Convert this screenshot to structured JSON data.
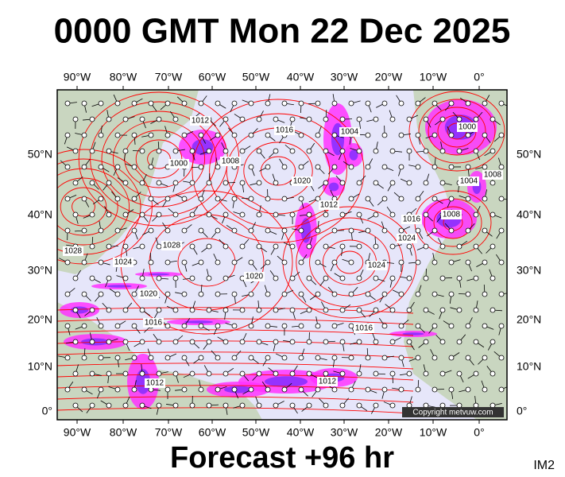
{
  "title": "0000 GMT Mon 22 Dec 2025",
  "subtitle": "Forecast +96 hr",
  "corner_label": "IM2",
  "copyright": "Copyright metvuw.com",
  "lon_labels": [
    "90°W",
    "80°W",
    "70°W",
    "60°W",
    "50°W",
    "40°W",
    "30°W",
    "20°W",
    "10°W",
    "0°"
  ],
  "lat_labels": [
    "50°N",
    "40°N",
    "30°N",
    "20°N",
    "10°N",
    "0°"
  ],
  "isobar_labels": [
    "1012",
    "1016",
    "1000",
    "1008",
    "1004",
    "1020",
    "1012",
    "1016",
    "1024",
    "1024",
    "1020",
    "1028",
    "1024",
    "1028",
    "1020",
    "1016",
    "1016",
    "1012",
    "1012",
    "1004",
    "1008",
    "1000",
    "1008"
  ]
}
